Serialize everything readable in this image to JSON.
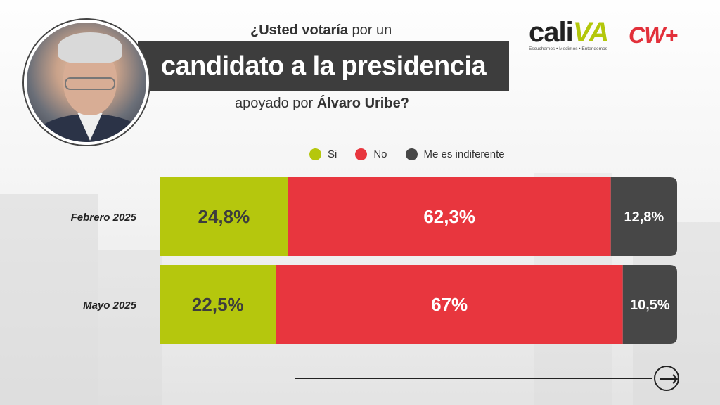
{
  "header": {
    "title_line1_bold": "¿Usted votaría",
    "title_line1_rest": " por un",
    "title_main": "candidato a la presidencia",
    "title_line3_rest": "apoyado por ",
    "title_line3_bold": "Álvaro Uribe?"
  },
  "brand": {
    "caliva_cali": "cali",
    "caliva_va": "VA",
    "caliva_tagline": "Escuchamos • Medimos • Entendemos",
    "cw_logo": "CW+"
  },
  "colors": {
    "si": "#b5c70d",
    "no": "#e8363e",
    "indiferente": "#474747",
    "dark_label": "#3d3d3d",
    "light_label": "#ffffff"
  },
  "icons": {
    "next": "arrow-right-circle-icon"
  },
  "chart_data": {
    "type": "bar",
    "orientation": "horizontal",
    "stacked": true,
    "categories": [
      "Febrero 2025",
      "Mayo 2025"
    ],
    "series": [
      {
        "name": "Si",
        "values": [
          24.8,
          22.5
        ],
        "labels": [
          "24,8%",
          "22,5%"
        ]
      },
      {
        "name": "No",
        "values": [
          62.3,
          67
        ],
        "labels": [
          "62,3%",
          "67%"
        ]
      },
      {
        "name": "Me es indiferente",
        "values": [
          12.8,
          10.5
        ],
        "labels": [
          "12,8%",
          "10,5%"
        ]
      }
    ],
    "legend_position": "top",
    "grid": false
  }
}
